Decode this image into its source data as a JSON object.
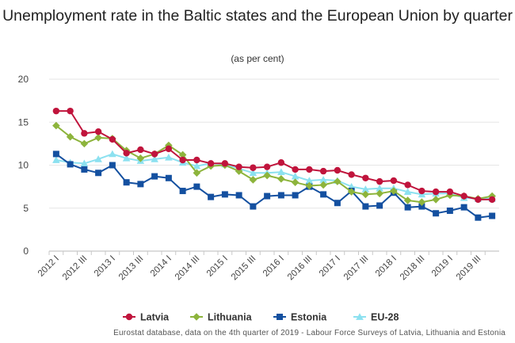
{
  "chart_data": {
    "type": "line",
    "title": "Unemployment rate in the Baltic states and the European Union by quarter",
    "subtitle": "(as per cent)",
    "xlabel": "",
    "ylabel": "",
    "ylim": [
      0,
      20
    ],
    "yticks": [
      0,
      5,
      10,
      15,
      20
    ],
    "grid": true,
    "legend_position": "bottom",
    "x": [
      "2012 I",
      "2012 II",
      "2012 III",
      "2012 IV",
      "2013 I",
      "2013 II",
      "2013 III",
      "2013 IV",
      "2014 I",
      "2014 II",
      "2014 III",
      "2014 IV",
      "2015 I",
      "2015 II",
      "2015 III",
      "2015 IV",
      "2016 I",
      "2016 II",
      "2016 III",
      "2016 IV",
      "2017 I",
      "2017 II",
      "2017 III",
      "2017 IV",
      "2018 I",
      "2018 II",
      "2018 III",
      "2018 IV",
      "2019 I",
      "2019 II",
      "2019 III",
      "2019 IV"
    ],
    "xtick_labels": [
      "2012 I",
      "2012 III",
      "2013 I",
      "2013 III",
      "2014 I",
      "2014 III",
      "2015 I",
      "2015 III",
      "2016 I",
      "2016 III",
      "2017 I",
      "2017 III",
      "2018 I",
      "2018 III",
      "2019 I",
      "2019 III"
    ],
    "series": [
      {
        "name": "Latvia",
        "color": "#c0143c",
        "marker": "circle",
        "values": [
          16.3,
          16.3,
          13.7,
          13.9,
          13.0,
          11.4,
          11.8,
          11.3,
          11.9,
          10.6,
          10.6,
          10.2,
          10.2,
          9.8,
          9.7,
          9.8,
          10.3,
          9.5,
          9.5,
          9.3,
          9.4,
          8.9,
          8.5,
          8.1,
          8.2,
          7.7,
          7.0,
          6.9,
          6.9,
          6.4,
          6.0,
          6.0
        ]
      },
      {
        "name": "Lithuania",
        "color": "#8db43c",
        "marker": "diamond",
        "values": [
          14.6,
          13.3,
          12.5,
          13.2,
          13.1,
          11.7,
          10.8,
          11.3,
          12.3,
          11.2,
          9.1,
          9.9,
          10.0,
          9.3,
          8.3,
          8.8,
          8.4,
          8.0,
          7.6,
          7.7,
          8.1,
          6.9,
          6.6,
          6.7,
          7.0,
          5.9,
          5.7,
          6.0,
          6.5,
          6.4,
          6.1,
          6.4
        ]
      },
      {
        "name": "Estonia",
        "color": "#1450a0",
        "marker": "square",
        "values": [
          11.3,
          10.1,
          9.5,
          9.1,
          10.0,
          8.0,
          7.8,
          8.7,
          8.5,
          7.0,
          7.5,
          6.3,
          6.6,
          6.5,
          5.2,
          6.4,
          6.5,
          6.5,
          7.5,
          6.6,
          5.6,
          7.0,
          5.2,
          5.3,
          6.8,
          5.1,
          5.2,
          4.4,
          4.7,
          5.1,
          3.9,
          4.1
        ]
      },
      {
        "name": "EU-28",
        "color": "#8ce1f0",
        "marker": "triangle",
        "values": [
          10.6,
          10.3,
          10.2,
          10.7,
          11.3,
          10.8,
          10.5,
          10.7,
          10.9,
          10.3,
          9.9,
          10.2,
          10.1,
          9.6,
          9.1,
          9.1,
          9.2,
          8.7,
          8.2,
          8.3,
          8.2,
          7.5,
          7.2,
          7.3,
          7.3,
          6.9,
          6.6,
          6.7,
          6.7,
          6.2,
          6.1,
          6.1
        ]
      }
    ],
    "source": "Eurostat database, data on the 4th quarter of 2019 - Labour Force Surveys of Latvia, Lithuania and Estonia"
  }
}
